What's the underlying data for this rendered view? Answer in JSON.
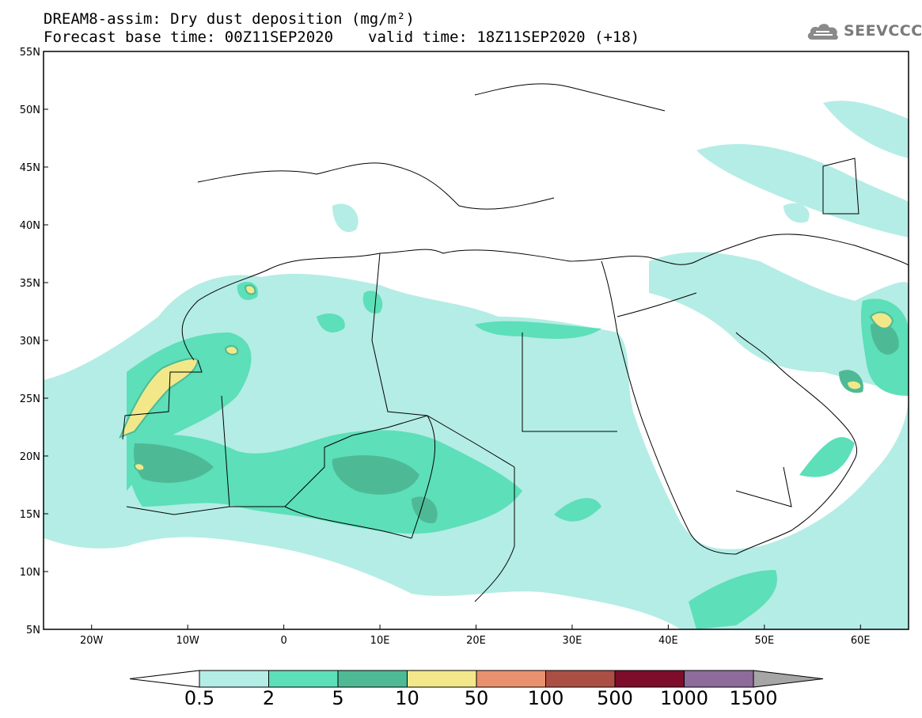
{
  "title": {
    "line1": "DREAM8-assim: Dry dust deposition (mg/m²)",
    "base_time": "Forecast base time: 00Z11SEP2020",
    "valid_time": "valid time: 18Z11SEP2020 (+18)"
  },
  "logo": {
    "text": "SEEVCCC",
    "icon": "cloud-icon"
  },
  "map": {
    "lon_range": [
      -25,
      65
    ],
    "lat_range": [
      5,
      55
    ],
    "lon_ticks": [
      {
        "value": -20,
        "label": "20W"
      },
      {
        "value": -10,
        "label": "10W"
      },
      {
        "value": 0,
        "label": "0"
      },
      {
        "value": 10,
        "label": "10E"
      },
      {
        "value": 20,
        "label": "20E"
      },
      {
        "value": 30,
        "label": "30E"
      },
      {
        "value": 40,
        "label": "40E"
      },
      {
        "value": 50,
        "label": "50E"
      },
      {
        "value": 60,
        "label": "60E"
      }
    ],
    "lat_ticks": [
      {
        "value": 55,
        "label": "55N"
      },
      {
        "value": 50,
        "label": "50N"
      },
      {
        "value": 45,
        "label": "45N"
      },
      {
        "value": 40,
        "label": "40N"
      },
      {
        "value": 35,
        "label": "35N"
      },
      {
        "value": 30,
        "label": "30N"
      },
      {
        "value": 25,
        "label": "25N"
      },
      {
        "value": 20,
        "label": "20N"
      },
      {
        "value": 15,
        "label": "15N"
      },
      {
        "value": 10,
        "label": "10N"
      },
      {
        "value": 5,
        "label": "5N"
      }
    ]
  },
  "colorbar": {
    "colors": [
      "#b4ede5",
      "#5ddfb9",
      "#4eba95",
      "#f2e88a",
      "#e9916c",
      "#ab4f44",
      "#7e0c2b",
      "#8d6b9b",
      "#a6a6a6"
    ],
    "labels": [
      "0.5",
      "2",
      "5",
      "10",
      "50",
      "100",
      "500",
      "1000",
      "1500"
    ]
  }
}
